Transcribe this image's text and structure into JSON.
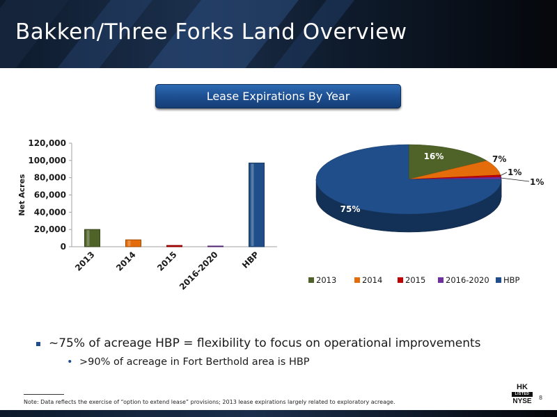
{
  "slide": {
    "title": "Bakken/Three Forks Land Overview",
    "chart_header": "Lease Expirations By Year",
    "bullets": [
      "~75% of acreage HBP = flexibility to focus on operational improvements",
      ">90% of acreage in Fort Berthold area is HBP"
    ],
    "footnote": "Note: Data reflects the exercise of “option to extend lease” provisions; 2013 lease expirations largely related to exploratory acreage.",
    "page_number": "8",
    "logo": {
      "hk": "HK",
      "listed": "LISTED",
      "nyse": "NYSE"
    }
  },
  "colors": {
    "header_dark": "#0d1a2b",
    "accent_blue": "#1f4e8a",
    "series_2013": "#4f6228",
    "series_2014": "#e46c0a",
    "series_2015": "#c00000",
    "series_2016_2020": "#7030a0",
    "series_hbp": "#1f4e8a"
  },
  "chart_data": [
    {
      "type": "bar",
      "categories": [
        "2013",
        "2014",
        "2015",
        "2016-2020",
        "HBP"
      ],
      "values": [
        20000,
        8000,
        1500,
        800,
        97000
      ],
      "ylabel": "Net Acres",
      "ylim": [
        0,
        120000
      ],
      "yticks": [
        "0",
        "20,000",
        "40,000",
        "60,000",
        "80,000",
        "100,000",
        "120,000"
      ],
      "grid": false
    },
    {
      "type": "pie",
      "labels": [
        "2013",
        "2014",
        "2015",
        "2016-2020",
        "HBP"
      ],
      "values": [
        16,
        7,
        1,
        1,
        75
      ],
      "data_labels": [
        "16%",
        "7%",
        "1%",
        "1%",
        "75%"
      ],
      "legend": "bottom"
    }
  ]
}
